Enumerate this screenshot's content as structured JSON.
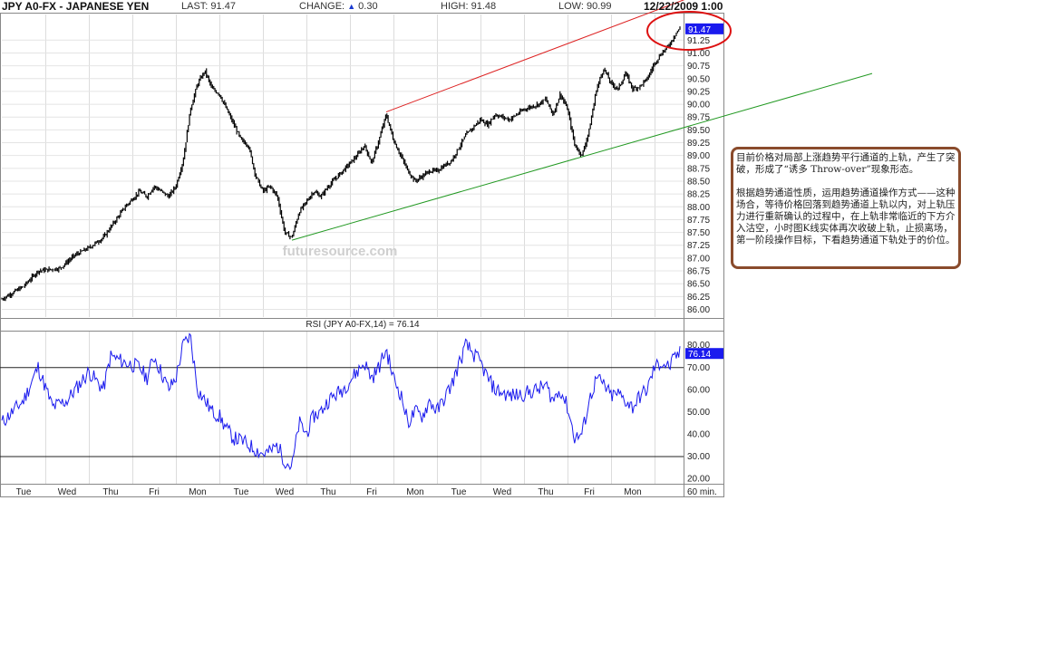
{
  "header": {
    "symbol": "JPY A0-FX - JAPANESE YEN",
    "last_label": "LAST:",
    "last_value": "91.47",
    "change_label": "CHANGE:",
    "change_value": "0.30",
    "high_label": "HIGH:",
    "high_value": "91.48",
    "low_label": "LOW:",
    "low_value": "90.99",
    "datetime": "12/22/2009 1:00"
  },
  "watermark": "futuresource.com",
  "annotation": {
    "para1": "目前价格对局部上涨趋势平行通道的上轨，产生了突破，形成了“诱多 Throw-over”现象形态。",
    "para2": "根据趋势通道性质，运用趋势通道操作方式——这种场合，等待价格回落到趋势通道上轨以内，对上轨压力进行重新确认的过程中，在上轨非常临近的下方介入沽空，小时图K线实体再次收破上轨，止损离场，第一阶段操作目标，下看趋势通道下轨处于的价位。"
  },
  "colors": {
    "upper_channel": "#dd2222",
    "lower_channel": "#229922",
    "rsi_line": "#1a1aee",
    "price": "#000000",
    "circle": "#dd1111",
    "label_bg": "#1a1aee"
  },
  "chart_data": [
    {
      "type": "line",
      "name": "price",
      "symbol": "JPY A0-FX",
      "title": "JPY A0-FX - JAPANESE YEN",
      "interval": "60 min.",
      "x_tick_labels": [
        "Tue",
        "Wed",
        "Thu",
        "Fri",
        "Mon",
        "Tue",
        "Wed",
        "Thu",
        "Fri",
        "Mon",
        "Tue",
        "Wed",
        "Thu",
        "Fri",
        "Mon"
      ],
      "y_ticks": [
        "86.00",
        "86.25",
        "86.50",
        "86.75",
        "87.00",
        "87.25",
        "87.50",
        "87.75",
        "88.00",
        "88.25",
        "88.50",
        "88.75",
        "89.00",
        "89.25",
        "89.50",
        "89.75",
        "90.00",
        "90.25",
        "90.50",
        "90.75",
        "91.00",
        "91.25"
      ],
      "ylim": [
        85.85,
        91.75
      ],
      "last_value": 91.47,
      "anchors": [
        [
          0,
          86.2
        ],
        [
          3,
          86.45
        ],
        [
          5,
          86.75
        ],
        [
          8,
          86.8
        ],
        [
          10,
          87.05
        ],
        [
          12,
          87.2
        ],
        [
          14,
          87.4
        ],
        [
          15,
          87.6
        ],
        [
          17,
          88.0
        ],
        [
          19,
          88.3
        ],
        [
          20,
          88.2
        ],
        [
          21,
          88.4
        ],
        [
          23,
          88.2
        ],
        [
          24,
          88.4
        ],
        [
          25,
          88.9
        ],
        [
          26,
          89.9
        ],
        [
          27,
          90.4
        ],
        [
          28,
          90.65
        ],
        [
          29,
          90.3
        ],
        [
          30,
          90.2
        ],
        [
          31,
          89.9
        ],
        [
          32,
          89.6
        ],
        [
          33,
          89.3
        ],
        [
          34,
          89.2
        ],
        [
          35,
          88.6
        ],
        [
          36,
          88.3
        ],
        [
          37,
          88.4
        ],
        [
          38,
          88.2
        ],
        [
          39,
          87.5
        ],
        [
          40,
          87.4
        ],
        [
          41,
          87.9
        ],
        [
          42,
          88.1
        ],
        [
          43,
          88.3
        ],
        [
          44,
          88.2
        ],
        [
          45,
          88.4
        ],
        [
          47,
          88.7
        ],
        [
          49,
          89.0
        ],
        [
          50,
          89.2
        ],
        [
          51,
          88.85
        ],
        [
          52,
          89.3
        ],
        [
          53,
          89.8
        ],
        [
          54,
          89.3
        ],
        [
          55,
          89.0
        ],
        [
          56,
          88.7
        ],
        [
          57,
          88.5
        ],
        [
          58,
          88.6
        ],
        [
          59,
          88.7
        ],
        [
          60,
          88.7
        ],
        [
          62,
          88.9
        ],
        [
          64,
          89.4
        ],
        [
          66,
          89.7
        ],
        [
          67,
          89.6
        ],
        [
          68,
          89.8
        ],
        [
          70,
          89.7
        ],
        [
          72,
          89.9
        ],
        [
          74,
          90.0
        ],
        [
          75,
          90.1
        ],
        [
          76,
          89.8
        ],
        [
          77,
          90.2
        ],
        [
          78,
          89.9
        ],
        [
          79,
          89.2
        ],
        [
          80,
          89.0
        ],
        [
          81,
          89.5
        ],
        [
          82,
          90.3
        ],
        [
          83,
          90.7
        ],
        [
          84,
          90.4
        ],
        [
          85,
          90.3
        ],
        [
          86,
          90.6
        ],
        [
          87,
          90.3
        ],
        [
          88,
          90.35
        ],
        [
          89,
          90.5
        ],
        [
          90,
          90.8
        ],
        [
          91,
          91.0
        ],
        [
          92,
          91.15
        ],
        [
          93,
          91.4
        ],
        [
          93.5,
          91.47
        ]
      ]
    },
    {
      "type": "line",
      "name": "channel-upper",
      "points": [
        [
          53,
          89.85
        ],
        [
          99,
          92.3
        ]
      ]
    },
    {
      "type": "line",
      "name": "channel-lower",
      "points": [
        [
          40,
          87.35
        ],
        [
          120,
          90.6
        ]
      ]
    },
    {
      "type": "line",
      "name": "rsi",
      "title": "RSI (JPY A0-FX,14) = 76.14",
      "y_ticks": [
        "20.00",
        "30.00",
        "40.00",
        "50.00",
        "60.00",
        "70.00",
        "80.00"
      ],
      "ylim": [
        18,
        86
      ],
      "reference_lines": [
        30,
        70
      ],
      "last_value": 76.14,
      "anchors": [
        [
          0,
          45
        ],
        [
          3,
          55
        ],
        [
          5,
          70
        ],
        [
          7,
          52
        ],
        [
          9,
          55
        ],
        [
          12,
          68
        ],
        [
          14,
          60
        ],
        [
          15,
          75
        ],
        [
          17,
          72
        ],
        [
          19,
          70
        ],
        [
          20,
          65
        ],
        [
          21,
          75
        ],
        [
          23,
          60
        ],
        [
          24,
          65
        ],
        [
          25,
          80
        ],
        [
          26,
          84
        ],
        [
          27,
          60
        ],
        [
          28,
          55
        ],
        [
          29,
          50
        ],
        [
          30,
          48
        ],
        [
          31,
          42
        ],
        [
          32,
          38
        ],
        [
          33,
          37
        ],
        [
          34,
          35
        ],
        [
          35,
          33
        ],
        [
          36,
          31
        ],
        [
          37,
          32
        ],
        [
          38,
          35
        ],
        [
          39,
          28
        ],
        [
          40,
          25
        ],
        [
          41,
          45
        ],
        [
          42,
          40
        ],
        [
          43,
          48
        ],
        [
          44,
          50
        ],
        [
          45,
          55
        ],
        [
          47,
          60
        ],
        [
          49,
          68
        ],
        [
          50,
          72
        ],
        [
          51,
          65
        ],
        [
          52,
          70
        ],
        [
          53,
          78
        ],
        [
          54,
          65
        ],
        [
          55,
          58
        ],
        [
          56,
          45
        ],
        [
          57,
          50
        ],
        [
          58,
          48
        ],
        [
          59,
          55
        ],
        [
          60,
          50
        ],
        [
          62,
          62
        ],
        [
          64,
          80
        ],
        [
          66,
          72
        ],
        [
          67,
          65
        ],
        [
          68,
          60
        ],
        [
          70,
          57
        ],
        [
          72,
          58
        ],
        [
          74,
          60
        ],
        [
          75,
          62
        ],
        [
          76,
          55
        ],
        [
          77,
          60
        ],
        [
          78,
          52
        ],
        [
          79,
          38
        ],
        [
          80,
          40
        ],
        [
          81,
          55
        ],
        [
          82,
          65
        ],
        [
          83,
          62
        ],
        [
          84,
          57
        ],
        [
          85,
          58
        ],
        [
          86,
          55
        ],
        [
          87,
          52
        ],
        [
          88,
          57
        ],
        [
          89,
          60
        ],
        [
          90,
          70
        ],
        [
          91,
          72
        ],
        [
          92,
          70
        ],
        [
          93,
          75
        ],
        [
          93.5,
          76.14
        ]
      ]
    }
  ]
}
